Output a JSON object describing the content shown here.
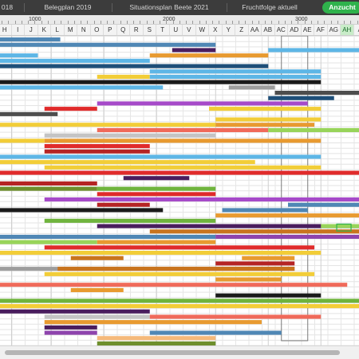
{
  "tabs": [
    {
      "label": "018",
      "active": false
    },
    {
      "label": "Belegplan 2019",
      "active": false
    },
    {
      "label": "Situationsplan Beete 2021",
      "active": false
    },
    {
      "label": "Fruchtfolge aktuell",
      "active": false
    },
    {
      "label": "Anzucht",
      "active": true
    }
  ],
  "ruler": {
    "labels": [
      "1000",
      "2000",
      "3000"
    ]
  },
  "columns": [
    "H",
    "I",
    "J",
    "K",
    "L",
    "M",
    "N",
    "O",
    "P",
    "Q",
    "R",
    "S",
    "T",
    "U",
    "V",
    "W",
    "X",
    "Y",
    "Z",
    "AA",
    "AB",
    "AC",
    "AD",
    "AE",
    "AF",
    "AG",
    "AH",
    "A"
  ],
  "selected_column": "AH",
  "colors": {
    "steel_blue": "#4f87b5",
    "sky_blue": "#5db6e6",
    "navy": "#1e4f79",
    "deep_purple": "#4a1d5e",
    "purple": "#8e44ad",
    "orchid": "#a64ac9",
    "yellow": "#f2cd38",
    "orange": "#e89a30",
    "dark_orange": "#c9741e",
    "salmon": "#f06a5a",
    "red": "#e02b2b",
    "dark_red": "#b52424",
    "green": "#6fb43d",
    "lime": "#98d45a",
    "olive": "#6e8f2d",
    "black": "#1a1a1a",
    "dark_gray": "#4d4d4d",
    "gray": "#9e9e9e",
    "light_gray": "#c4c4c4",
    "peach": "#f5b97a",
    "tab_active": "#2fb24c"
  },
  "bars": [
    {
      "row": 0,
      "start": 0.0,
      "span": 4.7,
      "color": "steel_blue"
    },
    {
      "row": 1,
      "start": 0.0,
      "span": 16.5,
      "color": "steel_blue"
    },
    {
      "row": 2,
      "start": 13.2,
      "span": 3.3,
      "color": "deep_purple"
    },
    {
      "row": 2,
      "start": 20.5,
      "span": 7.5,
      "color": "sky_blue"
    },
    {
      "row": 3,
      "start": 0.0,
      "span": 3.0,
      "color": "sky_blue"
    },
    {
      "row": 3,
      "start": 11.5,
      "span": 9.0,
      "color": "orange"
    },
    {
      "row": 4,
      "start": 0.0,
      "span": 11.5,
      "color": "sky_blue"
    },
    {
      "row": 5,
      "start": 0.0,
      "span": 20.5,
      "color": "navy"
    },
    {
      "row": 6,
      "start": 11.5,
      "span": 13.0,
      "color": "sky_blue"
    },
    {
      "row": 7,
      "start": 7.5,
      "span": 4.0,
      "color": "yellow"
    },
    {
      "row": 7,
      "start": 11.5,
      "span": 13.0,
      "color": "sky_blue"
    },
    {
      "row": 8,
      "start": 0.0,
      "span": 24.5,
      "color": "black"
    },
    {
      "row": 9,
      "start": 0.0,
      "span": 12.5,
      "color": "sky_blue"
    },
    {
      "row": 9,
      "start": 17.5,
      "span": 3.5,
      "color": "gray"
    },
    {
      "row": 10,
      "start": 21.0,
      "span": 7.0,
      "color": "dark_gray"
    },
    {
      "row": 11,
      "start": 20.5,
      "span": 5.0,
      "color": "navy"
    },
    {
      "row": 12,
      "start": 7.5,
      "span": 16.0,
      "color": "orchid"
    },
    {
      "row": 13,
      "start": 3.5,
      "span": 4.0,
      "color": "red"
    },
    {
      "row": 13,
      "start": 16.0,
      "span": 8.5,
      "color": "yellow"
    },
    {
      "row": 14,
      "start": 0.0,
      "span": 4.5,
      "color": "dark_gray"
    },
    {
      "row": 15,
      "start": 16.5,
      "span": 8.0,
      "color": "yellow"
    },
    {
      "row": 16,
      "start": 0.0,
      "span": 16.5,
      "color": "yellow"
    },
    {
      "row": 16,
      "start": 16.5,
      "span": 7.5,
      "color": "orange"
    },
    {
      "row": 17,
      "start": 7.5,
      "span": 9.0,
      "color": "salmon"
    },
    {
      "row": 17,
      "start": 16.5,
      "span": 4.0,
      "color": "salmon"
    },
    {
      "row": 17,
      "start": 20.5,
      "span": 7.5,
      "color": "lime"
    },
    {
      "row": 18,
      "start": 3.5,
      "span": 13.0,
      "color": "light_gray"
    },
    {
      "row": 19,
      "start": 0.0,
      "span": 3.5,
      "color": "yellow"
    },
    {
      "row": 19,
      "start": 3.5,
      "span": 21.0,
      "color": "orange"
    },
    {
      "row": 20,
      "start": 3.5,
      "span": 8.0,
      "color": "red"
    },
    {
      "row": 21,
      "start": 3.5,
      "span": 8.0,
      "color": "dark_red"
    },
    {
      "row": 22,
      "start": 0.0,
      "span": 24.5,
      "color": "sky_blue"
    },
    {
      "row": 23,
      "start": 0.0,
      "span": 19.5,
      "color": "yellow"
    },
    {
      "row": 24,
      "start": 3.5,
      "span": 21.0,
      "color": "yellow"
    },
    {
      "row": 25,
      "start": 0.0,
      "span": 28.0,
      "color": "red"
    },
    {
      "row": 26,
      "start": 9.5,
      "span": 5.0,
      "color": "deep_purple"
    },
    {
      "row": 27,
      "start": 0.0,
      "span": 7.5,
      "color": "dark_red"
    },
    {
      "row": 28,
      "start": 7.5,
      "span": 9.0,
      "color": "green"
    },
    {
      "row": 28,
      "start": 0.0,
      "span": 7.5,
      "color": "olive"
    },
    {
      "row": 29,
      "start": 7.5,
      "span": 9.0,
      "color": "red"
    },
    {
      "row": 30,
      "start": 3.5,
      "span": 24.5,
      "color": "orchid"
    },
    {
      "row": 31,
      "start": 7.5,
      "span": 4.0,
      "color": "dark_red"
    },
    {
      "row": 31,
      "start": 22.0,
      "span": 6.0,
      "color": "steel_blue"
    },
    {
      "row": 32,
      "start": 0.0,
      "span": 12.5,
      "color": "black"
    },
    {
      "row": 32,
      "start": 17.0,
      "span": 6.5,
      "color": "steel_blue"
    },
    {
      "row": 33,
      "start": 16.5,
      "span": 11.5,
      "color": "orange"
    },
    {
      "row": 34,
      "start": 3.5,
      "span": 13.0,
      "color": "green"
    },
    {
      "row": 35,
      "start": 7.5,
      "span": 20.5,
      "color": "deep_purple"
    },
    {
      "row": 35,
      "start": 24.5,
      "span": 3.5,
      "color": "lime"
    },
    {
      "row": 36,
      "start": 11.5,
      "span": 16.5,
      "color": "dark_orange"
    },
    {
      "row": 37,
      "start": 0.0,
      "span": 16.5,
      "color": "steel_blue"
    },
    {
      "row": 37,
      "start": 16.5,
      "span": 11.5,
      "color": "purple"
    },
    {
      "row": 38,
      "start": 0.0,
      "span": 7.5,
      "color": "lime"
    },
    {
      "row": 38,
      "start": 7.5,
      "span": 9.0,
      "color": "orange"
    },
    {
      "row": 39,
      "start": 3.5,
      "span": 20.5,
      "color": "red"
    },
    {
      "row": 40,
      "start": 0.0,
      "span": 24.5,
      "color": "yellow"
    },
    {
      "row": 41,
      "start": 5.5,
      "span": 4.0,
      "color": "dark_orange"
    },
    {
      "row": 41,
      "start": 18.5,
      "span": 4.0,
      "color": "orange"
    },
    {
      "row": 42,
      "start": 16.5,
      "span": 6.0,
      "color": "dark_red"
    },
    {
      "row": 43,
      "start": 0.0,
      "span": 22.5,
      "color": "gray"
    },
    {
      "row": 43,
      "start": 4.5,
      "span": 18.0,
      "color": "dark_orange"
    },
    {
      "row": 44,
      "start": 3.5,
      "span": 20.5,
      "color": "yellow"
    },
    {
      "row": 45,
      "start": 16.5,
      "span": 5.0,
      "color": "orange"
    },
    {
      "row": 46,
      "start": 0.0,
      "span": 26.5,
      "color": "salmon"
    },
    {
      "row": 47,
      "start": 5.5,
      "span": 4.0,
      "color": "orange"
    },
    {
      "row": 48,
      "start": 16.5,
      "span": 8.0,
      "color": "black"
    },
    {
      "row": 49,
      "start": 0.0,
      "span": 28.0,
      "color": "green"
    },
    {
      "row": 50,
      "start": 0.0,
      "span": 28.0,
      "color": "yellow"
    },
    {
      "row": 51,
      "start": 0.0,
      "span": 11.5,
      "color": "deep_purple"
    },
    {
      "row": 52,
      "start": 3.5,
      "span": 8.0,
      "color": "light_gray"
    },
    {
      "row": 52,
      "start": 11.5,
      "span": 13.0,
      "color": "salmon"
    },
    {
      "row": 53,
      "start": 3.5,
      "span": 16.5,
      "color": "orange"
    },
    {
      "row": 54,
      "start": 3.5,
      "span": 4.0,
      "color": "deep_purple"
    },
    {
      "row": 55,
      "start": 3.5,
      "span": 4.0,
      "color": "purple"
    },
    {
      "row": 55,
      "start": 11.5,
      "span": 10.0,
      "color": "steel_blue"
    },
    {
      "row": 56,
      "start": 7.5,
      "span": 9.0,
      "color": "peach"
    },
    {
      "row": 57,
      "start": 7.5,
      "span": 9.0,
      "color": "olive"
    }
  ]
}
